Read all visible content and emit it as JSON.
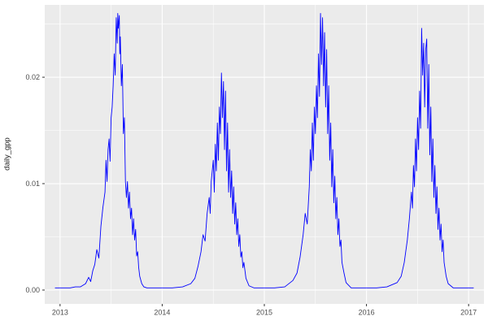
{
  "chart_data": {
    "type": "line",
    "title": "",
    "xlabel": "",
    "ylabel": "daily_gpp",
    "legend": "none",
    "grid": "ggplot-gray-panel-white-gridlines",
    "panel_bg": "#EBEBEB",
    "grid_color": "#FFFFFF",
    "line_color": "#0000FF",
    "tick_label_color": "#4D4D4D",
    "tick_mark_color": "#333333",
    "xlim": [
      2012.85,
      2017.15
    ],
    "ylim": [
      -0.0013,
      0.0268
    ],
    "x_ticks": {
      "values": [
        2013,
        2014,
        2015,
        2016,
        2017
      ],
      "labels": [
        "2013",
        "2014",
        "2015",
        "2016",
        "2017"
      ]
    },
    "y_ticks": {
      "values": [
        0,
        0.01,
        0.02
      ],
      "labels": [
        "0.00",
        "0.01",
        "0.02"
      ]
    },
    "x_minor": [
      2013.5,
      2014.5,
      2015.5,
      2016.5
    ],
    "y_minor": [
      0.005,
      0.015,
      0.025
    ],
    "series": [
      {
        "name": "daily_gpp",
        "points": [
          [
            2012.95,
            0.0002
          ],
          [
            2013.0,
            0.0002
          ],
          [
            2013.05,
            0.0002
          ],
          [
            2013.1,
            0.0002
          ],
          [
            2013.15,
            0.0003
          ],
          [
            2013.2,
            0.0003
          ],
          [
            2013.25,
            0.0006
          ],
          [
            2013.28,
            0.0012
          ],
          [
            2013.3,
            0.0008
          ],
          [
            2013.32,
            0.0018
          ],
          [
            2013.34,
            0.0024
          ],
          [
            2013.36,
            0.0038
          ],
          [
            2013.38,
            0.003
          ],
          [
            2013.4,
            0.006
          ],
          [
            2013.42,
            0.0078
          ],
          [
            2013.44,
            0.0092
          ],
          [
            2013.45,
            0.0122
          ],
          [
            2013.46,
            0.0102
          ],
          [
            2013.47,
            0.0132
          ],
          [
            2013.48,
            0.0142
          ],
          [
            2013.49,
            0.0121
          ],
          [
            2013.5,
            0.0162
          ],
          [
            2013.51,
            0.0172
          ],
          [
            2013.52,
            0.0192
          ],
          [
            2013.53,
            0.0222
          ],
          [
            2013.54,
            0.0202
          ],
          [
            2013.55,
            0.0256
          ],
          [
            2013.56,
            0.0232
          ],
          [
            2013.565,
            0.026
          ],
          [
            2013.57,
            0.0246
          ],
          [
            2013.58,
            0.0258
          ],
          [
            2013.585,
            0.0222
          ],
          [
            2013.59,
            0.0238
          ],
          [
            2013.6,
            0.0192
          ],
          [
            2013.61,
            0.0212
          ],
          [
            2013.62,
            0.0147
          ],
          [
            2013.63,
            0.0162
          ],
          [
            2013.64,
            0.0102
          ],
          [
            2013.65,
            0.0087
          ],
          [
            2013.66,
            0.0102
          ],
          [
            2013.67,
            0.0077
          ],
          [
            2013.68,
            0.0092
          ],
          [
            2013.69,
            0.0067
          ],
          [
            2013.7,
            0.0077
          ],
          [
            2013.71,
            0.0052
          ],
          [
            2013.72,
            0.0067
          ],
          [
            2013.73,
            0.0047
          ],
          [
            2013.74,
            0.0057
          ],
          [
            2013.75,
            0.0032
          ],
          [
            2013.76,
            0.0036
          ],
          [
            2013.77,
            0.0021
          ],
          [
            2013.78,
            0.0013
          ],
          [
            2013.8,
            0.0006
          ],
          [
            2013.82,
            0.0003
          ],
          [
            2013.85,
            0.0002
          ],
          [
            2013.9,
            0.0002
          ],
          [
            2013.95,
            0.0002
          ],
          [
            2014.0,
            0.0002
          ],
          [
            2014.1,
            0.0002
          ],
          [
            2014.2,
            0.0003
          ],
          [
            2014.28,
            0.0006
          ],
          [
            2014.32,
            0.0011
          ],
          [
            2014.35,
            0.0022
          ],
          [
            2014.38,
            0.0036
          ],
          [
            2014.4,
            0.0052
          ],
          [
            2014.42,
            0.0046
          ],
          [
            2014.44,
            0.0072
          ],
          [
            2014.46,
            0.0087
          ],
          [
            2014.47,
            0.0072
          ],
          [
            2014.48,
            0.0102
          ],
          [
            2014.5,
            0.0122
          ],
          [
            2014.51,
            0.0092
          ],
          [
            2014.52,
            0.0137
          ],
          [
            2014.53,
            0.0112
          ],
          [
            2014.54,
            0.0157
          ],
          [
            2014.55,
            0.0122
          ],
          [
            2014.56,
            0.0172
          ],
          [
            2014.57,
            0.0147
          ],
          [
            2014.58,
            0.0204
          ],
          [
            2014.59,
            0.0162
          ],
          [
            2014.6,
            0.0196
          ],
          [
            2014.61,
            0.0132
          ],
          [
            2014.62,
            0.0187
          ],
          [
            2014.63,
            0.0112
          ],
          [
            2014.64,
            0.0157
          ],
          [
            2014.65,
            0.0092
          ],
          [
            2014.66,
            0.0132
          ],
          [
            2014.67,
            0.0087
          ],
          [
            2014.68,
            0.0112
          ],
          [
            2014.69,
            0.0072
          ],
          [
            2014.7,
            0.0097
          ],
          [
            2014.71,
            0.0062
          ],
          [
            2014.72,
            0.0082
          ],
          [
            2014.73,
            0.0052
          ],
          [
            2014.74,
            0.0067
          ],
          [
            2014.75,
            0.0041
          ],
          [
            2014.76,
            0.0052
          ],
          [
            2014.77,
            0.0031
          ],
          [
            2014.78,
            0.0036
          ],
          [
            2014.79,
            0.0021
          ],
          [
            2014.8,
            0.0026
          ],
          [
            2014.82,
            0.0011
          ],
          [
            2014.85,
            0.0004
          ],
          [
            2014.9,
            0.0002
          ],
          [
            2014.95,
            0.0002
          ],
          [
            2015.0,
            0.0002
          ],
          [
            2015.1,
            0.0002
          ],
          [
            2015.2,
            0.0003
          ],
          [
            2015.28,
            0.0009
          ],
          [
            2015.32,
            0.0016
          ],
          [
            2015.35,
            0.0031
          ],
          [
            2015.38,
            0.0052
          ],
          [
            2015.4,
            0.0072
          ],
          [
            2015.42,
            0.0062
          ],
          [
            2015.44,
            0.0097
          ],
          [
            2015.45,
            0.0132
          ],
          [
            2015.46,
            0.0112
          ],
          [
            2015.47,
            0.0157
          ],
          [
            2015.48,
            0.0122
          ],
          [
            2015.49,
            0.0172
          ],
          [
            2015.5,
            0.0147
          ],
          [
            2015.51,
            0.0192
          ],
          [
            2015.52,
            0.0162
          ],
          [
            2015.53,
            0.0222
          ],
          [
            2015.54,
            0.0182
          ],
          [
            2015.55,
            0.026
          ],
          [
            2015.56,
            0.0212
          ],
          [
            2015.57,
            0.0256
          ],
          [
            2015.58,
            0.0192
          ],
          [
            2015.59,
            0.0242
          ],
          [
            2015.6,
            0.0172
          ],
          [
            2015.61,
            0.0226
          ],
          [
            2015.62,
            0.0147
          ],
          [
            2015.63,
            0.0192
          ],
          [
            2015.64,
            0.0122
          ],
          [
            2015.65,
            0.0157
          ],
          [
            2015.66,
            0.0097
          ],
          [
            2015.67,
            0.0132
          ],
          [
            2015.68,
            0.0082
          ],
          [
            2015.69,
            0.0107
          ],
          [
            2015.7,
            0.0067
          ],
          [
            2015.71,
            0.0087
          ],
          [
            2015.72,
            0.0052
          ],
          [
            2015.73,
            0.0067
          ],
          [
            2015.74,
            0.0041
          ],
          [
            2015.75,
            0.0047
          ],
          [
            2015.76,
            0.0026
          ],
          [
            2015.78,
            0.0016
          ],
          [
            2015.8,
            0.0007
          ],
          [
            2015.85,
            0.0002
          ],
          [
            2015.9,
            0.0002
          ],
          [
            2015.95,
            0.0002
          ],
          [
            2016.0,
            0.0002
          ],
          [
            2016.1,
            0.0002
          ],
          [
            2016.2,
            0.0003
          ],
          [
            2016.3,
            0.0007
          ],
          [
            2016.34,
            0.0013
          ],
          [
            2016.37,
            0.0026
          ],
          [
            2016.4,
            0.0047
          ],
          [
            2016.42,
            0.0067
          ],
          [
            2016.44,
            0.0092
          ],
          [
            2016.45,
            0.0077
          ],
          [
            2016.46,
            0.0117
          ],
          [
            2016.47,
            0.0097
          ],
          [
            2016.48,
            0.0142
          ],
          [
            2016.49,
            0.0112
          ],
          [
            2016.5,
            0.0162
          ],
          [
            2016.51,
            0.0132
          ],
          [
            2016.52,
            0.0187
          ],
          [
            2016.53,
            0.0152
          ],
          [
            2016.54,
            0.0246
          ],
          [
            2016.55,
            0.0202
          ],
          [
            2016.56,
            0.0232
          ],
          [
            2016.57,
            0.0172
          ],
          [
            2016.58,
            0.0226
          ],
          [
            2016.59,
            0.0236
          ],
          [
            2016.6,
            0.0152
          ],
          [
            2016.61,
            0.0212
          ],
          [
            2016.62,
            0.0127
          ],
          [
            2016.63,
            0.0172
          ],
          [
            2016.64,
            0.0102
          ],
          [
            2016.65,
            0.0142
          ],
          [
            2016.66,
            0.0087
          ],
          [
            2016.67,
            0.0117
          ],
          [
            2016.68,
            0.0072
          ],
          [
            2016.69,
            0.0097
          ],
          [
            2016.7,
            0.0057
          ],
          [
            2016.71,
            0.0077
          ],
          [
            2016.72,
            0.0047
          ],
          [
            2016.73,
            0.0062
          ],
          [
            2016.74,
            0.0036
          ],
          [
            2016.75,
            0.0047
          ],
          [
            2016.76,
            0.0026
          ],
          [
            2016.78,
            0.0013
          ],
          [
            2016.8,
            0.0006
          ],
          [
            2016.85,
            0.0002
          ],
          [
            2016.9,
            0.0002
          ],
          [
            2016.95,
            0.0002
          ],
          [
            2017.0,
            0.0002
          ],
          [
            2017.05,
            0.0002
          ]
        ]
      }
    ]
  }
}
